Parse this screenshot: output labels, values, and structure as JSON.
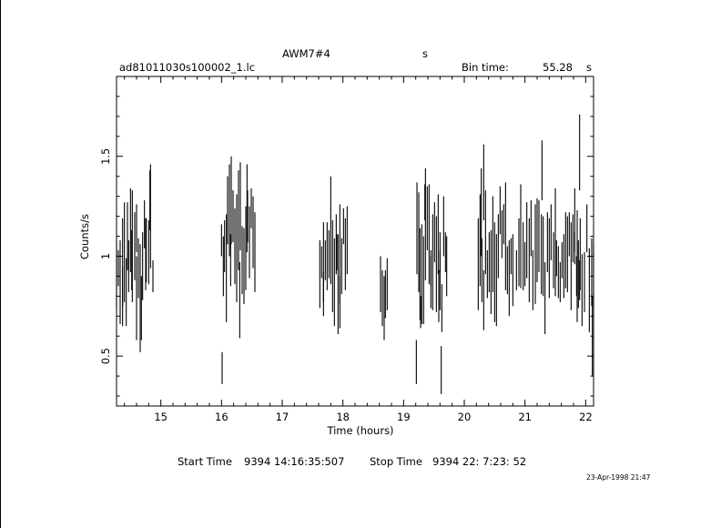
{
  "header": {
    "object": "AWM7#4",
    "object_unit": "s",
    "filename": "ad81011030s100002_1.lc",
    "bin_label": "Bin time:",
    "bin_value": "55.28",
    "bin_unit": "s"
  },
  "footer": {
    "start_label": "Start Time",
    "start_value": "9394 14:16:35:507",
    "stop_label": "Stop Time",
    "stop_value": "9394 22: 7:23: 52",
    "date_stamp": "23-Apr-1998 21:47"
  },
  "colors": {
    "line": "#000000",
    "background": "#ffffff"
  },
  "chart_data": {
    "type": "scatter",
    "style": "error bars, no markers",
    "xlabel": "Time (hours)",
    "ylabel": "Counts/s",
    "xlim": [
      14.27,
      22.13
    ],
    "ylim": [
      0.25,
      1.9
    ],
    "xticks": [
      15,
      16,
      17,
      18,
      19,
      20,
      21,
      22
    ],
    "yticks": [
      0.5,
      1,
      1.5
    ],
    "ytick_labels": [
      "0.5",
      "1",
      "1.5"
    ],
    "grid": false,
    "series": [
      {
        "points": [
          [
            14.27,
            0.91,
            0.17
          ],
          [
            14.3,
            0.94,
            0.09
          ],
          [
            14.33,
            0.87,
            0.21
          ],
          [
            14.37,
            0.92,
            0.27
          ],
          [
            14.4,
            1.02,
            0.25
          ],
          [
            14.43,
            0.82,
            0.17
          ],
          [
            14.47,
            0.95,
            0.13
          ],
          [
            14.5,
            1.13,
            0.21
          ],
          [
            14.53,
            1.05,
            0.28
          ],
          [
            14.57,
            1.05,
            0.17
          ],
          [
            14.6,
            1.14,
            0.12
          ],
          [
            14.63,
            0.94,
            0.15
          ],
          [
            14.66,
            0.79,
            0.27
          ],
          [
            14.7,
            0.95,
            0.17
          ],
          [
            14.73,
            1.16,
            0.12
          ],
          [
            14.76,
            1.03,
            0.16
          ],
          [
            14.8,
            1.02,
            0.16
          ],
          [
            14.83,
            1.2,
            0.26
          ],
          [
            14.87,
            0.9,
            0.08
          ],
          [
            14.37,
            0.85,
            0.1
          ],
          [
            14.45,
            1.1,
            0.17
          ],
          [
            14.52,
            0.98,
            0.15
          ],
          [
            14.6,
            0.79,
            0.21
          ],
          [
            14.68,
            0.74,
            0.16
          ],
          [
            14.75,
            1.01,
            0.18
          ],
          [
            14.82,
            1.28,
            0.15
          ],
          [
            16.0,
            1.08,
            0.08
          ],
          [
            16.03,
            0.95,
            0.15
          ],
          [
            16.05,
            1.05,
            0.13
          ],
          [
            16.08,
            0.94,
            0.27
          ],
          [
            16.1,
            1.23,
            0.17
          ],
          [
            16.13,
            1.23,
            0.23
          ],
          [
            16.16,
            1.28,
            0.22
          ],
          [
            16.19,
            1.2,
            0.13
          ],
          [
            16.22,
            1.05,
            0.19
          ],
          [
            16.25,
            1.04,
            0.27
          ],
          [
            16.28,
            1.18,
            0.25
          ],
          [
            16.31,
            1.25,
            0.22
          ],
          [
            16.34,
            0.98,
            0.17
          ],
          [
            16.37,
            0.95,
            0.19
          ],
          [
            16.4,
            1.04,
            0.21
          ],
          [
            16.43,
            1.2,
            0.13
          ],
          [
            16.46,
            1.07,
            0.18
          ],
          [
            16.49,
            1.24,
            0.1
          ],
          [
            16.52,
            1.12,
            0.18
          ],
          [
            16.55,
            1.02,
            0.2
          ],
          [
            16.01,
            0.44,
            0.08
          ],
          [
            16.42,
            1.24,
            0.22
          ],
          [
            16.15,
            0.98,
            0.13
          ],
          [
            16.3,
            0.78,
            0.19
          ],
          [
            17.62,
            0.91,
            0.17
          ],
          [
            17.65,
            0.97,
            0.08
          ],
          [
            17.68,
            0.97,
            0.2
          ],
          [
            17.71,
            0.98,
            0.1
          ],
          [
            17.74,
            1.0,
            0.17
          ],
          [
            17.77,
            1.01,
            0.12
          ],
          [
            17.8,
            1.13,
            0.27
          ],
          [
            17.83,
            0.95,
            0.23
          ],
          [
            17.86,
            0.87,
            0.22
          ],
          [
            17.89,
            1.06,
            0.15
          ],
          [
            17.92,
            0.86,
            0.25
          ],
          [
            17.95,
            1.01,
            0.25
          ],
          [
            17.98,
            0.95,
            0.14
          ],
          [
            18.01,
            1.15,
            0.09
          ],
          [
            18.04,
            1.01,
            0.18
          ],
          [
            18.07,
            1.08,
            0.17
          ],
          [
            17.68,
            0.81,
            0.11
          ],
          [
            17.9,
            1.02,
            0.09
          ],
          [
            17.95,
            0.77,
            0.13
          ],
          [
            18.62,
            0.86,
            0.14
          ],
          [
            18.65,
            0.79,
            0.14
          ],
          [
            18.68,
            0.74,
            0.16
          ],
          [
            18.7,
            0.81,
            0.12
          ],
          [
            18.73,
            0.86,
            0.13
          ],
          [
            19.22,
            1.14,
            0.23
          ],
          [
            19.25,
            1.07,
            0.25
          ],
          [
            19.27,
            0.91,
            0.23
          ],
          [
            19.3,
            0.91,
            0.25
          ],
          [
            19.33,
            0.88,
            0.22
          ],
          [
            19.36,
            1.16,
            0.28
          ],
          [
            19.39,
            1.19,
            0.16
          ],
          [
            19.42,
            1.11,
            0.25
          ],
          [
            19.45,
            0.94,
            0.09
          ],
          [
            19.48,
            0.97,
            0.24
          ],
          [
            19.51,
            1.12,
            0.15
          ],
          [
            19.54,
            0.96,
            0.24
          ],
          [
            19.57,
            1.11,
            0.2
          ],
          [
            19.6,
            1.02,
            0.1
          ],
          [
            19.63,
            0.74,
            0.12
          ],
          [
            19.66,
            1.15,
            0.15
          ],
          [
            19.69,
            1.02,
            0.1
          ],
          [
            19.71,
            0.95,
            0.15
          ],
          [
            19.21,
            0.47,
            0.11
          ],
          [
            19.28,
            0.72,
            0.08
          ],
          [
            19.62,
            0.43,
            0.12
          ],
          [
            19.6,
            0.88,
            0.15
          ],
          [
            19.35,
            1.27,
            0.09
          ],
          [
            19.45,
            0.87,
            0.13
          ],
          [
            19.58,
            0.8,
            0.13
          ],
          [
            20.23,
            0.96,
            0.23
          ],
          [
            20.26,
            1.08,
            0.23
          ],
          [
            20.29,
            0.93,
            0.16
          ],
          [
            20.32,
            0.78,
            0.15
          ],
          [
            20.35,
            1.12,
            0.21
          ],
          [
            20.38,
            0.91,
            0.12
          ],
          [
            20.41,
            0.97,
            0.15
          ],
          [
            20.44,
            0.92,
            0.21
          ],
          [
            20.47,
            1.06,
            0.24
          ],
          [
            20.5,
            0.92,
            0.25
          ],
          [
            20.53,
            0.88,
            0.23
          ],
          [
            20.56,
            1.05,
            0.16
          ],
          [
            20.59,
            1.23,
            0.12
          ],
          [
            20.62,
            1.11,
            0.12
          ],
          [
            20.65,
            1.16,
            0.1
          ],
          [
            20.68,
            1.1,
            0.27
          ],
          [
            20.71,
            0.93,
            0.12
          ],
          [
            20.74,
            0.89,
            0.19
          ],
          [
            20.77,
            1.0,
            0.09
          ],
          [
            20.8,
            0.93,
            0.18
          ],
          [
            20.32,
            1.37,
            0.19
          ],
          [
            20.28,
            1.22,
            0.22
          ],
          [
            20.86,
            0.93,
            0.1
          ],
          [
            20.9,
            1.02,
            0.17
          ],
          [
            20.93,
            1.1,
            0.26
          ],
          [
            20.97,
            1.0,
            0.17
          ],
          [
            21.0,
            0.96,
            0.11
          ],
          [
            21.03,
            1.08,
            0.19
          ],
          [
            21.07,
            0.98,
            0.21
          ],
          [
            21.1,
            1.14,
            0.14
          ],
          [
            21.13,
            0.88,
            0.15
          ],
          [
            21.17,
            1.01,
            0.25
          ],
          [
            21.2,
            1.08,
            0.21
          ],
          [
            21.23,
            1.1,
            0.18
          ],
          [
            21.27,
            1.01,
            0.2
          ],
          [
            21.3,
            1.0,
            0.2
          ],
          [
            21.33,
            0.79,
            0.18
          ],
          [
            21.37,
            1.07,
            0.15
          ],
          [
            21.4,
            0.99,
            0.2
          ],
          [
            21.43,
            1.12,
            0.14
          ],
          [
            21.47,
            0.98,
            0.14
          ],
          [
            21.5,
            1.07,
            0.27
          ],
          [
            21.52,
            0.99,
            0.09
          ],
          [
            21.55,
            0.92,
            0.13
          ],
          [
            21.58,
            0.87,
            0.1
          ],
          [
            21.61,
            0.98,
            0.09
          ],
          [
            21.64,
            0.95,
            0.16
          ],
          [
            21.67,
            1.03,
            0.19
          ],
          [
            21.7,
            1.01,
            0.19
          ],
          [
            21.73,
            1.11,
            0.11
          ],
          [
            21.76,
            0.95,
            0.22
          ],
          [
            21.79,
            1.09,
            0.12
          ],
          [
            21.82,
            1.18,
            0.16
          ],
          [
            21.85,
            0.9,
            0.1
          ],
          [
            21.88,
            0.91,
            0.17
          ],
          [
            21.91,
            1.01,
            0.18
          ],
          [
            21.28,
            1.43,
            0.15
          ],
          [
            21.82,
            1.04,
            0.08
          ],
          [
            21.86,
            0.95,
            0.28
          ],
          [
            21.9,
            0.88,
            0.1
          ],
          [
            21.94,
            0.83,
            0.18
          ],
          [
            21.98,
            0.87,
            0.15
          ],
          [
            22.02,
            1.14,
            0.12
          ],
          [
            22.06,
            0.83,
            0.21
          ],
          [
            22.1,
            0.92,
            0.17
          ],
          [
            22.13,
            0.9,
            0.16
          ],
          [
            21.9,
            1.52,
            0.19
          ],
          [
            22.11,
            0.6,
            0.2
          ]
        ]
      }
    ]
  }
}
